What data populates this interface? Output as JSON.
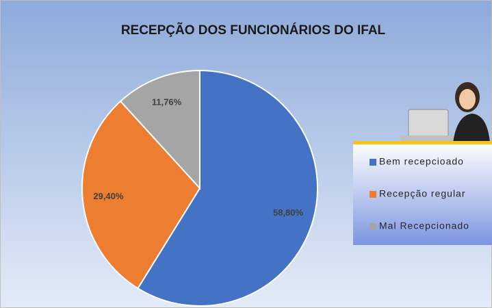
{
  "chart_data": {
    "type": "pie",
    "title": "RECEPÇÃO DOS FUNCIONÁRIOS DO IFAL",
    "categories": [
      "Bem recepcioado",
      "Recepção regular",
      "Mal Recepcionado"
    ],
    "values": [
      58.8,
      29.4,
      11.76
    ],
    "value_labels": [
      "58,80%",
      "29,40%",
      "11,76%"
    ],
    "colors": [
      "#4472c4",
      "#ed7d31",
      "#a5a5a5"
    ],
    "legend": "right"
  }
}
